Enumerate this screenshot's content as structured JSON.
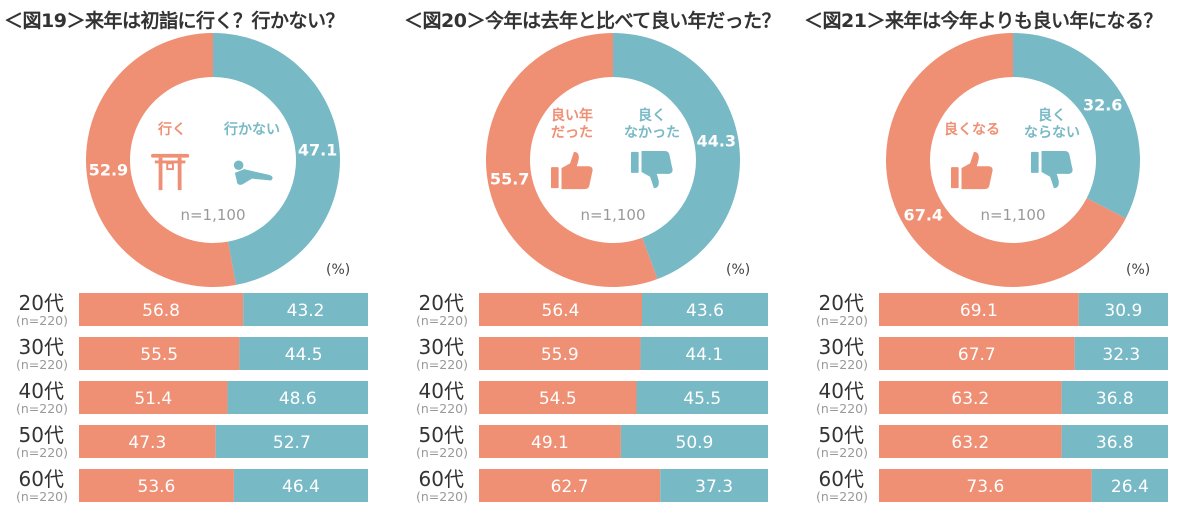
{
  "colors": {
    "positive": "#ef8f74",
    "negative": "#78b9c6",
    "n_text": "#999999"
  },
  "unit_label": "(%)",
  "chart_data": [
    {
      "type": "donut+stacked-bar",
      "title": "＜図19＞来年は初詣に行く？行かない？",
      "categories": [
        "行く",
        "行かない"
      ],
      "icons": [
        "torii-icon",
        "lying-person-icon"
      ],
      "total": [
        52.9,
        47.1
      ],
      "n": "n=1,100",
      "rows": [
        {
          "label": "20代",
          "n": "(n=220)",
          "values": [
            56.8,
            43.2
          ]
        },
        {
          "label": "30代",
          "n": "(n=220)",
          "values": [
            55.5,
            44.5
          ]
        },
        {
          "label": "40代",
          "n": "(n=220)",
          "values": [
            51.4,
            48.6
          ]
        },
        {
          "label": "50代",
          "n": "(n=220)",
          "values": [
            47.3,
            52.7
          ]
        },
        {
          "label": "60代",
          "n": "(n=220)",
          "values": [
            53.6,
            46.4
          ]
        }
      ]
    },
    {
      "type": "donut+stacked-bar",
      "title": "＜図20＞今年は去年と比べて良い年だった？",
      "categories": [
        "良い年\nだった",
        "良く\nなかった"
      ],
      "icons": [
        "thumbs-up-icon",
        "thumbs-down-icon"
      ],
      "total": [
        55.7,
        44.3
      ],
      "n": "n=1,100",
      "rows": [
        {
          "label": "20代",
          "n": "(n=220)",
          "values": [
            56.4,
            43.6
          ]
        },
        {
          "label": "30代",
          "n": "(n=220)",
          "values": [
            55.9,
            44.1
          ]
        },
        {
          "label": "40代",
          "n": "(n=220)",
          "values": [
            54.5,
            45.5
          ]
        },
        {
          "label": "50代",
          "n": "(n=220)",
          "values": [
            49.1,
            50.9
          ]
        },
        {
          "label": "60代",
          "n": "(n=220)",
          "values": [
            62.7,
            37.3
          ]
        }
      ]
    },
    {
      "type": "donut+stacked-bar",
      "title": "＜図21＞来年は今年よりも良い年になる？",
      "categories": [
        "良くなる",
        "良く\nならない"
      ],
      "icons": [
        "thumbs-up-icon",
        "thumbs-down-icon"
      ],
      "total": [
        67.4,
        32.6
      ],
      "n": "n=1,100",
      "rows": [
        {
          "label": "20代",
          "n": "(n=220)",
          "values": [
            69.1,
            30.9
          ]
        },
        {
          "label": "30代",
          "n": "(n=220)",
          "values": [
            67.7,
            32.3
          ]
        },
        {
          "label": "40代",
          "n": "(n=220)",
          "values": [
            63.2,
            36.8
          ]
        },
        {
          "label": "50代",
          "n": "(n=220)",
          "values": [
            63.2,
            36.8
          ]
        },
        {
          "label": "60代",
          "n": "(n=220)",
          "values": [
            73.6,
            26.4
          ]
        }
      ]
    }
  ]
}
